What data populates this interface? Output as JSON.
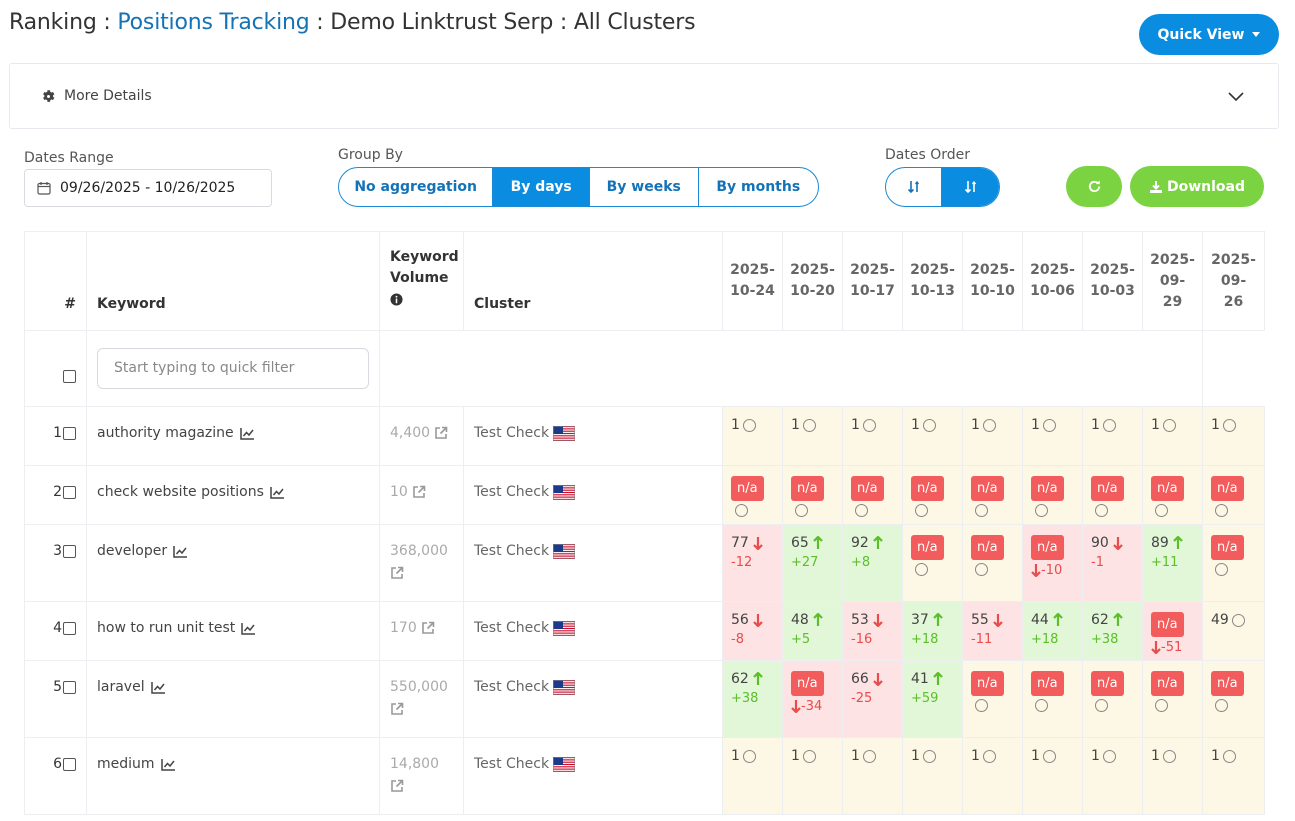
{
  "header": {
    "prefix": "Ranking : ",
    "link": "Positions Tracking",
    "suffix": " : Demo Linktrust Serp : All Clusters"
  },
  "quick_view_label": "Quick View",
  "more_details_label": "More Details",
  "filters": {
    "dates_range_label": "Dates Range",
    "dates_range_value": "09/26/2025 - 10/26/2025",
    "group_by_label": "Group By",
    "group_by_options": [
      "No aggregation",
      "By days",
      "By weeks",
      "By months"
    ],
    "group_by_active": "By days",
    "dates_order_label": "Dates Order",
    "download_label": "Download"
  },
  "table": {
    "headers": {
      "index": "#",
      "keyword": "Keyword",
      "volume_line1": "Keyword",
      "volume_line2": "Volume",
      "cluster": "Cluster"
    },
    "dates": [
      [
        "2025-",
        "10-24"
      ],
      [
        "2025-",
        "10-20"
      ],
      [
        "2025-",
        "10-17"
      ],
      [
        "2025-",
        "10-13"
      ],
      [
        "2025-",
        "10-10"
      ],
      [
        "2025-",
        "10-06"
      ],
      [
        "2025-",
        "10-03"
      ],
      [
        "2025-",
        "09-",
        "29"
      ],
      [
        "2025-",
        "09-",
        "26"
      ]
    ],
    "filter_placeholder": "Start typing to quick filter",
    "rows": [
      {
        "idx": "1",
        "keyword": "authority magazine",
        "volume": "4,400",
        "volume_wrap": false,
        "cluster": "Test Check",
        "cells": [
          {
            "bg": "neutral",
            "pos": "1",
            "circle": true
          },
          {
            "bg": "neutral",
            "pos": "1",
            "circle": true
          },
          {
            "bg": "neutral",
            "pos": "1",
            "circle": true
          },
          {
            "bg": "neutral",
            "pos": "1",
            "circle": true
          },
          {
            "bg": "neutral",
            "pos": "1",
            "circle": true
          },
          {
            "bg": "neutral",
            "pos": "1",
            "circle": true
          },
          {
            "bg": "neutral",
            "pos": "1",
            "circle": true
          },
          {
            "bg": "neutral",
            "pos": "1",
            "circle": true
          },
          {
            "bg": "neutral",
            "pos": "1",
            "circle": true
          }
        ]
      },
      {
        "idx": "2",
        "keyword": "check website positions",
        "volume": "10",
        "volume_wrap": false,
        "cluster": "Test Check",
        "cells": [
          {
            "bg": "neutral",
            "na": "n/a",
            "circle2": true
          },
          {
            "bg": "neutral",
            "na": "n/a",
            "circle2": true
          },
          {
            "bg": "neutral",
            "na": "n/a",
            "circle2": true
          },
          {
            "bg": "neutral",
            "na": "n/a",
            "circle2": true
          },
          {
            "bg": "neutral",
            "na": "n/a",
            "circle2": true
          },
          {
            "bg": "neutral",
            "na": "n/a",
            "circle2": true
          },
          {
            "bg": "neutral",
            "na": "n/a",
            "circle2": true
          },
          {
            "bg": "neutral",
            "na": "n/a",
            "circle2": true
          },
          {
            "bg": "neutral",
            "na": "n/a",
            "circle2": true
          }
        ]
      },
      {
        "idx": "3",
        "keyword": "developer",
        "volume": "368,000",
        "volume_wrap": true,
        "cluster": "Test Check",
        "cells": [
          {
            "bg": "bad",
            "pos": "77",
            "dir": "down",
            "delta": "-12"
          },
          {
            "bg": "good",
            "pos": "65",
            "dir": "up",
            "delta": "+27"
          },
          {
            "bg": "good",
            "pos": "92",
            "dir": "up",
            "delta": "+8"
          },
          {
            "bg": "neutral",
            "na": "n/a",
            "circle2": true
          },
          {
            "bg": "neutral",
            "na": "n/a",
            "circle2": true
          },
          {
            "bg": "bad",
            "na": "n/a",
            "naDelta": "-10"
          },
          {
            "bg": "bad",
            "pos": "90",
            "dir": "down",
            "delta": "-1"
          },
          {
            "bg": "good",
            "pos": "89",
            "dir": "up",
            "delta": "+11"
          },
          {
            "bg": "neutral",
            "na": "n/a",
            "circle2": true
          }
        ]
      },
      {
        "idx": "4",
        "keyword": "how to run unit test",
        "volume": "170",
        "volume_wrap": false,
        "cluster": "Test Check",
        "cells": [
          {
            "bg": "bad",
            "pos": "56",
            "dir": "down",
            "delta": "-8"
          },
          {
            "bg": "good",
            "pos": "48",
            "dir": "up",
            "delta": "+5"
          },
          {
            "bg": "bad",
            "pos": "53",
            "dir": "down",
            "delta": "-16"
          },
          {
            "bg": "good",
            "pos": "37",
            "dir": "up",
            "delta": "+18"
          },
          {
            "bg": "bad",
            "pos": "55",
            "dir": "down",
            "delta": "-11"
          },
          {
            "bg": "good",
            "pos": "44",
            "dir": "up",
            "delta": "+18"
          },
          {
            "bg": "good",
            "pos": "62",
            "dir": "up",
            "delta": "+38"
          },
          {
            "bg": "bad",
            "na": "n/a",
            "naDelta": "-51"
          },
          {
            "bg": "neutral",
            "pos": "49",
            "circle": true
          }
        ]
      },
      {
        "idx": "5",
        "keyword": "laravel",
        "volume": "550,000",
        "volume_wrap": true,
        "cluster": "Test Check",
        "cells": [
          {
            "bg": "good",
            "pos": "62",
            "dir": "up",
            "delta": "+38"
          },
          {
            "bg": "bad",
            "na": "n/a",
            "naDelta": "-34"
          },
          {
            "bg": "bad",
            "pos": "66",
            "dir": "down",
            "delta": "-25"
          },
          {
            "bg": "good",
            "pos": "41",
            "dir": "up",
            "delta": "+59"
          },
          {
            "bg": "neutral",
            "na": "n/a",
            "circle2": true
          },
          {
            "bg": "neutral",
            "na": "n/a",
            "circle2": true
          },
          {
            "bg": "neutral",
            "na": "n/a",
            "circle2": true
          },
          {
            "bg": "neutral",
            "na": "n/a",
            "circle2": true
          },
          {
            "bg": "neutral",
            "na": "n/a",
            "circle2": true
          }
        ]
      },
      {
        "idx": "6",
        "keyword": "medium",
        "volume": "14,800",
        "volume_wrap": true,
        "cluster": "Test Check",
        "cells": [
          {
            "bg": "neutral",
            "pos": "1",
            "circle": true
          },
          {
            "bg": "neutral",
            "pos": "1",
            "circle": true
          },
          {
            "bg": "neutral",
            "pos": "1",
            "circle": true
          },
          {
            "bg": "neutral",
            "pos": "1",
            "circle": true
          },
          {
            "bg": "neutral",
            "pos": "1",
            "circle": true
          },
          {
            "bg": "neutral",
            "pos": "1",
            "circle": true
          },
          {
            "bg": "neutral",
            "pos": "1",
            "circle": true
          },
          {
            "bg": "neutral",
            "pos": "1",
            "circle": true
          },
          {
            "bg": "neutral",
            "pos": "1",
            "circle": true
          }
        ]
      }
    ]
  },
  "colors": {
    "primary": "#0a8de0",
    "link": "#1473b6",
    "green": "#7bd342",
    "badge_red": "#f25c5c"
  },
  "icons": [
    "gear-icon",
    "chevron-down-icon",
    "calendar-icon",
    "sort-asc-icon",
    "sort-desc-icon",
    "refresh-icon",
    "download-icon",
    "info-icon",
    "trend-chart-icon",
    "external-link-icon",
    "us-flag-icon",
    "arrow-up-icon",
    "arrow-down-icon"
  ]
}
